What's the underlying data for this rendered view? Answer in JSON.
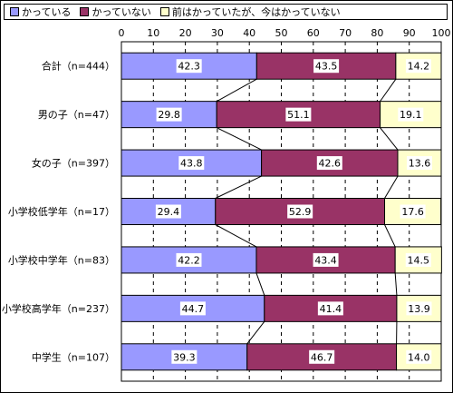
{
  "chart_data": {
    "type": "bar",
    "orientation": "horizontal",
    "stacked": "percent",
    "categories": [
      "合計（n=444）",
      "男の子（n=47）",
      "女の子（n=397）",
      "小学校低学年（n=17）",
      "小学校中学年（n=83）",
      "小学校高学年（n=237）",
      "中学生（n=107）"
    ],
    "series": [
      {
        "name": "かっている",
        "color": "#9999ff",
        "values": [
          42.3,
          29.8,
          43.8,
          29.4,
          42.2,
          44.7,
          39.3
        ]
      },
      {
        "name": "かっていない",
        "color": "#993366",
        "values": [
          43.5,
          51.1,
          42.6,
          52.9,
          43.4,
          41.4,
          46.7
        ]
      },
      {
        "name": "前はかっていたが、今はかっていない",
        "color": "#ffffcc",
        "values": [
          14.2,
          19.1,
          13.6,
          17.6,
          14.5,
          13.9,
          14.0
        ]
      }
    ],
    "value_labels": [
      [
        "42.3",
        "43.5",
        "14.2"
      ],
      [
        "29.8",
        "51.1",
        "19.1"
      ],
      [
        "43.8",
        "42.6",
        "13.6"
      ],
      [
        "29.4",
        "52.9",
        "17.6"
      ],
      [
        "42.2",
        "43.4",
        "14.5"
      ],
      [
        "44.7",
        "41.4",
        "13.9"
      ],
      [
        "39.3",
        "46.7",
        "14.0"
      ]
    ],
    "xlim": [
      0,
      100
    ],
    "xticks": [
      0,
      10,
      20,
      30,
      40,
      50,
      60,
      70,
      80,
      90,
      100
    ],
    "grid": "vertical-dashed",
    "legend": "top",
    "series_lines": true
  }
}
